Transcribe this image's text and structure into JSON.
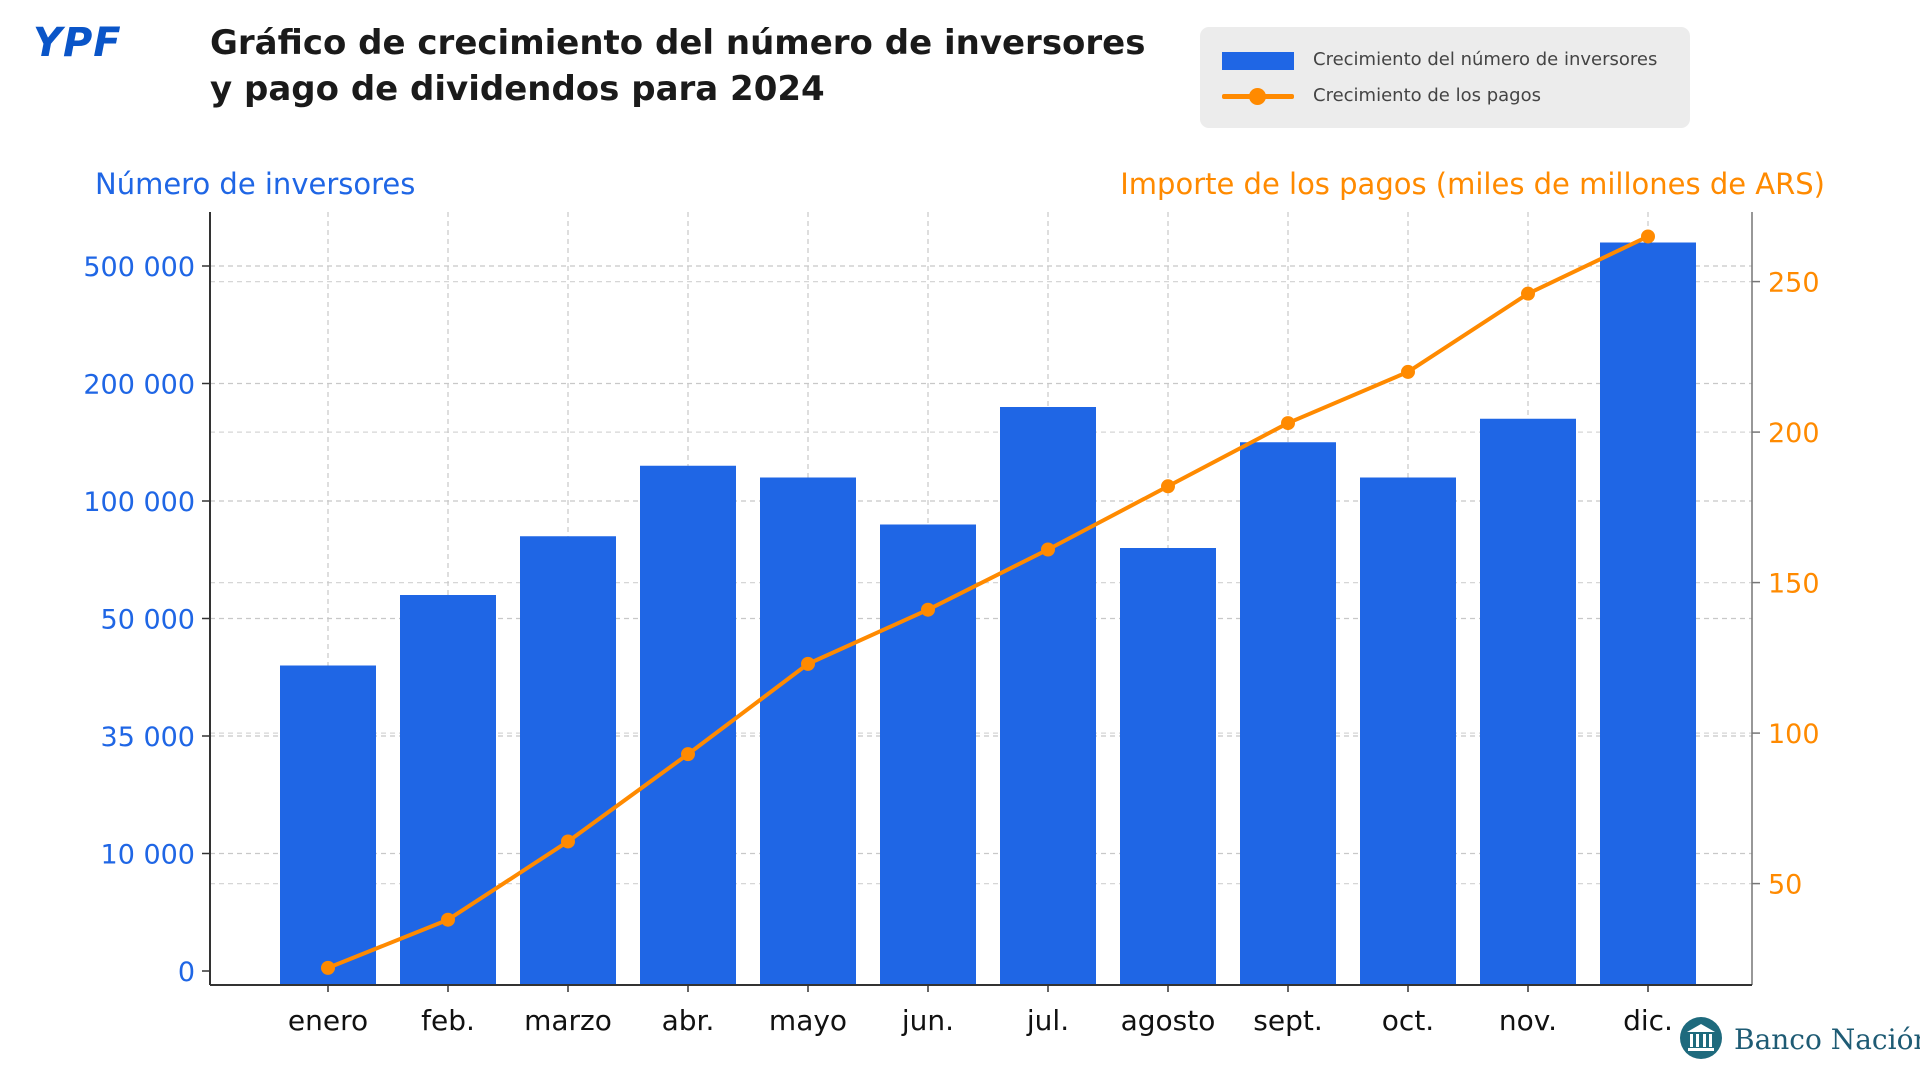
{
  "header": {
    "logo_text": "YPF",
    "title_line1": "Gráfico de crecimiento del número de inversores",
    "title_line2": "y pago de dividendos para 2024"
  },
  "legend": {
    "bar_label": "Crecimiento del número de inversores",
    "line_label": "Crecimiento de los pagos"
  },
  "colors": {
    "bars": "#1f66e5",
    "line": "#ff8a00",
    "left_axis": "#1f66e5",
    "right_axis": "#ff8a00"
  },
  "footer": {
    "brand": "Banco Nación",
    "seal_icon": "bank-building-icon"
  },
  "chart_data": {
    "type": "bar",
    "categories": [
      "enero",
      "feb.",
      "marzo",
      "abr.",
      "mayo",
      "jun.",
      "jul.",
      "agosto",
      "sept.",
      "oct.",
      "nov.",
      "dic."
    ],
    "left_axis": {
      "label": "Número de inversores",
      "ticks": [
        "0",
        "10 000",
        "35 000",
        "50 000",
        "100 000",
        "200 000",
        "500 000"
      ],
      "note": "tick labels printed at evenly spaced positions (non-linear scale)"
    },
    "right_axis": {
      "label": "Importe de los pagos (miles de millones de ARS)",
      "ticks": [
        50,
        100,
        150,
        200,
        250
      ],
      "ylim": [
        10,
        255
      ]
    },
    "series": [
      {
        "name": "Crecimiento del número de inversores",
        "kind": "bar",
        "axis": "left",
        "values_tick_position": [
          2.6,
          3.2,
          3.7,
          4.3,
          4.2,
          3.8,
          4.8,
          3.6,
          4.5,
          4.2,
          4.7,
          6.2
        ]
      },
      {
        "name": "Crecimiento de los pagos",
        "kind": "line",
        "axis": "right",
        "values": [
          22,
          38,
          64,
          93,
          123,
          141,
          161,
          182,
          203,
          220,
          246,
          265
        ]
      }
    ],
    "grid": true
  }
}
